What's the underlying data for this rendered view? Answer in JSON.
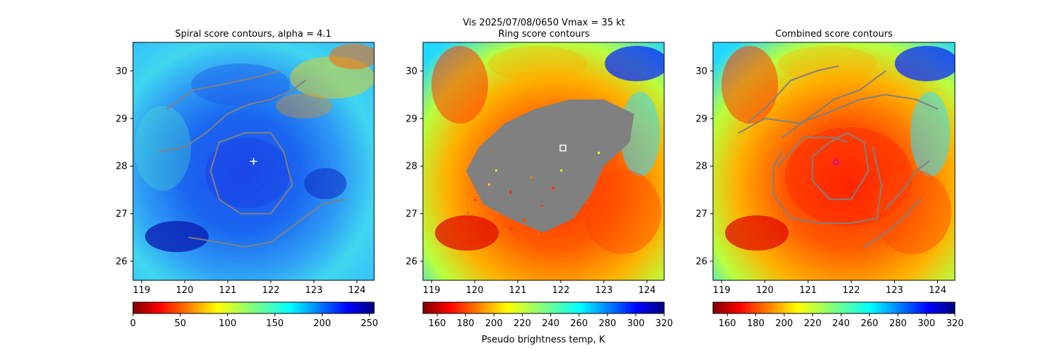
{
  "figure": {
    "suptitle_line1": "Vis  2025/07/08/0650    Vmax = 35 kt",
    "colorbar_label": "Pseudo brightness temp, K"
  },
  "chart_data": [
    {
      "type": "heatmap",
      "title": "Spiral score contours, alpha =  4.1",
      "xlim": [
        118.8,
        124.4
      ],
      "ylim": [
        25.6,
        30.6
      ],
      "xticks": [
        119,
        120,
        121,
        122,
        123,
        124
      ],
      "yticks": [
        26,
        27,
        28,
        29,
        30
      ],
      "colormap": "jet",
      "colorbar": {
        "ticks": [
          0,
          50,
          100,
          150,
          200,
          250
        ],
        "range": [
          0,
          255
        ]
      },
      "marker": {
        "shape": "plus",
        "color": "#ffffff",
        "x": 121.6,
        "y": 28.1
      },
      "contours": [
        {
          "color": "#808080",
          "points": [
            [
              119.4,
              28.3
            ],
            [
              120.0,
              28.4
            ],
            [
              120.5,
              28.7
            ],
            [
              121.0,
              29.1
            ],
            [
              121.5,
              29.3
            ],
            [
              122.0,
              29.4
            ],
            [
              122.5,
              29.6
            ],
            [
              122.8,
              29.8
            ]
          ]
        },
        {
          "color": "#808080",
          "points": [
            [
              119.6,
              29.2
            ],
            [
              120.2,
              29.6
            ],
            [
              120.8,
              29.7
            ],
            [
              121.3,
              29.8
            ],
            [
              121.8,
              29.9
            ],
            [
              122.2,
              30.0
            ]
          ]
        },
        {
          "color": "#808080",
          "points": [
            [
              122.3,
              28.3
            ],
            [
              122.0,
              28.7
            ],
            [
              121.4,
              28.7
            ],
            [
              120.8,
              28.5
            ],
            [
              120.6,
              27.9
            ],
            [
              120.8,
              27.3
            ],
            [
              121.3,
              27.0
            ],
            [
              122.0,
              27.0
            ],
            [
              122.5,
              27.6
            ],
            [
              122.3,
              28.3
            ]
          ]
        },
        {
          "color": "#808080",
          "points": [
            [
              120.1,
              26.5
            ],
            [
              120.8,
              26.4
            ],
            [
              121.4,
              26.3
            ],
            [
              122.0,
              26.4
            ],
            [
              122.6,
              26.8
            ],
            [
              123.2,
              27.2
            ],
            [
              123.7,
              27.3
            ]
          ]
        }
      ]
    },
    {
      "type": "heatmap",
      "title": "Ring score contours",
      "xlim": [
        118.8,
        124.4
      ],
      "ylim": [
        25.6,
        30.6
      ],
      "xticks": [
        119,
        120,
        121,
        122,
        123,
        124
      ],
      "yticks": [
        26,
        27,
        28,
        29,
        30
      ],
      "colormap": "jet_r",
      "colorbar": {
        "ticks": [
          160,
          180,
          200,
          220,
          240,
          260,
          280,
          300,
          320
        ],
        "range": [
          150,
          320
        ]
      },
      "marker": {
        "shape": "square",
        "color": "#ffffff",
        "x": 122.05,
        "y": 28.38
      },
      "ring_region": {
        "color": "#808080",
        "points": [
          [
            119.8,
            27.9
          ],
          [
            120.1,
            28.4
          ],
          [
            120.7,
            28.9
          ],
          [
            121.4,
            29.2
          ],
          [
            122.2,
            29.4
          ],
          [
            123.0,
            29.4
          ],
          [
            123.7,
            29.1
          ],
          [
            123.6,
            28.5
          ],
          [
            123.0,
            28.0
          ],
          [
            122.7,
            27.4
          ],
          [
            122.3,
            26.9
          ],
          [
            121.6,
            26.6
          ],
          [
            120.8,
            26.9
          ],
          [
            120.2,
            27.2
          ],
          [
            119.8,
            27.9
          ]
        ]
      }
    },
    {
      "type": "heatmap",
      "title": "Combined score contours",
      "xlim": [
        118.8,
        124.4
      ],
      "ylim": [
        25.6,
        30.6
      ],
      "xticks": [
        119,
        120,
        121,
        122,
        123,
        124
      ],
      "yticks": [
        26,
        27,
        28,
        29,
        30
      ],
      "colormap": "jet_r",
      "colorbar": {
        "ticks": [
          160,
          180,
          200,
          220,
          240,
          260,
          280,
          300,
          320
        ],
        "range": [
          150,
          320
        ]
      },
      "marker": {
        "shape": "circle",
        "color": "#cc00cc",
        "x": 121.65,
        "y": 28.08
      },
      "contours": [
        {
          "color": "#808080",
          "points": [
            [
              119.6,
              28.9
            ],
            [
              120.1,
              29.3
            ],
            [
              120.6,
              29.8
            ],
            [
              121.2,
              30.0
            ],
            [
              121.7,
              30.1
            ]
          ]
        },
        {
          "color": "#808080",
          "points": [
            [
              120.4,
              28.6
            ],
            [
              121.0,
              29.0
            ],
            [
              121.6,
              29.4
            ],
            [
              122.2,
              29.6
            ],
            [
              122.8,
              30.0
            ]
          ]
        },
        {
          "color": "#808080",
          "points": [
            [
              119.4,
              28.7
            ],
            [
              120.0,
              29.0
            ],
            [
              120.8,
              28.9
            ],
            [
              121.4,
              29.1
            ],
            [
              122.2,
              29.4
            ],
            [
              122.8,
              29.5
            ],
            [
              123.5,
              29.4
            ],
            [
              124.0,
              29.2
            ]
          ]
        },
        {
          "color": "#808080",
          "points": [
            [
              121.5,
              28.5
            ],
            [
              121.1,
              28.2
            ],
            [
              121.1,
              27.7
            ],
            [
              121.5,
              27.3
            ],
            [
              122.0,
              27.3
            ],
            [
              122.4,
              27.9
            ],
            [
              122.3,
              28.5
            ],
            [
              121.9,
              28.7
            ],
            [
              121.5,
              28.5
            ]
          ]
        },
        {
          "color": "#808080",
          "points": [
            [
              120.3,
              28.0
            ],
            [
              120.6,
              28.3
            ],
            [
              120.9,
              28.6
            ],
            [
              121.2,
              28.6
            ],
            [
              121.6,
              28.6
            ],
            [
              121.9,
              28.5
            ]
          ]
        },
        {
          "color": "#808080",
          "points": [
            [
              122.5,
              28.4
            ],
            [
              122.7,
              27.6
            ],
            [
              122.6,
              26.9
            ],
            [
              122.0,
              26.8
            ],
            [
              121.3,
              26.8
            ],
            [
              120.6,
              26.9
            ],
            [
              120.2,
              27.4
            ],
            [
              120.2,
              28.0
            ],
            [
              120.4,
              28.3
            ]
          ]
        },
        {
          "color": "#808080",
          "points": [
            [
              122.3,
              26.3
            ],
            [
              122.8,
              26.6
            ],
            [
              123.2,
              26.9
            ],
            [
              123.6,
              27.3
            ]
          ]
        },
        {
          "color": "#808080",
          "points": [
            [
              122.8,
              27.1
            ],
            [
              123.2,
              27.5
            ],
            [
              123.5,
              27.9
            ],
            [
              123.8,
              28.1
            ]
          ]
        }
      ]
    }
  ]
}
